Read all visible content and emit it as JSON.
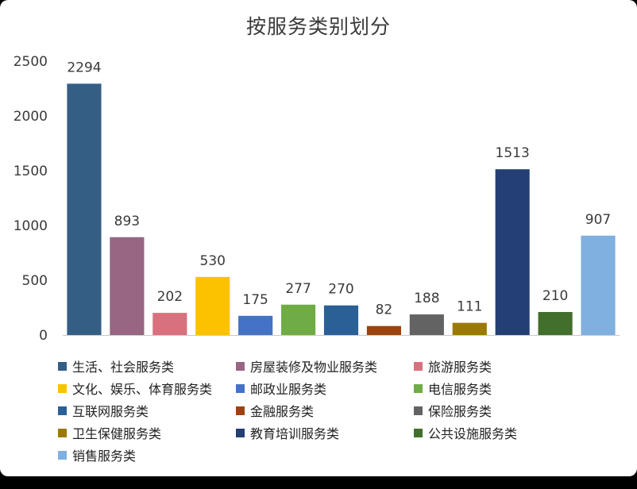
{
  "chart_data": {
    "type": "bar",
    "title": "按服务类别划分",
    "categories": [
      "生活、社会服务类",
      "房屋装修及物业服务类",
      "旅游服务类",
      "文化、娱乐、体育服务类",
      "邮政业服务类",
      "电信服务类",
      "互联网服务类",
      "金融服务类",
      "保险服务类",
      "卫生保健服务类",
      "教育培训服务类",
      "公共设施服务类",
      "销售服务类"
    ],
    "values": [
      2294,
      893,
      202,
      530,
      175,
      277,
      270,
      82,
      188,
      111,
      1513,
      210,
      907
    ],
    "colors": [
      "#355e84",
      "#986682",
      "#d8717d",
      "#fcc200",
      "#4473c5",
      "#6fac46",
      "#2a6096",
      "#9b440f",
      "#636363",
      "#9a7a00",
      "#243f73",
      "#426f2c",
      "#7fb0e0"
    ],
    "ylim": [
      0,
      2500
    ],
    "yticks": [
      0,
      500,
      1000,
      1500,
      2000,
      2500
    ],
    "data_labels": true,
    "gridlines": false,
    "legend_position": "bottom"
  }
}
